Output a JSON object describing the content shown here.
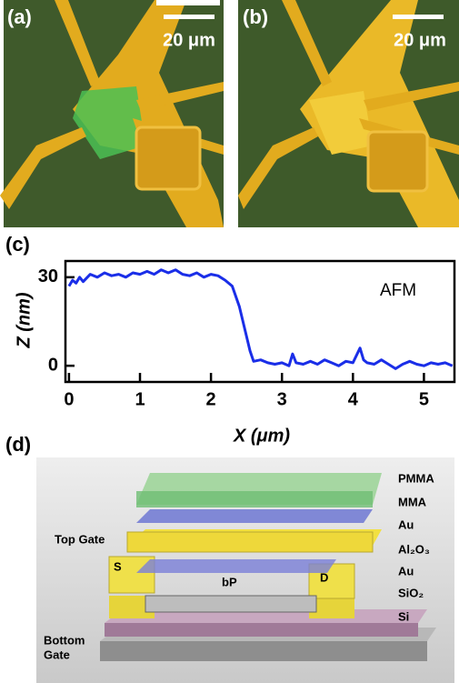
{
  "panels": {
    "a": {
      "label": "(a)",
      "scale_bar": "20 μm"
    },
    "b": {
      "label": "(b)",
      "scale_bar": "20 μm"
    },
    "d": {
      "label": "(d)",
      "layers": [
        "PMMA",
        "MMA",
        "Au",
        "Al₂O₃",
        "Au",
        "SiO₂",
        "Si"
      ],
      "top_gate": "Top Gate",
      "source": "S",
      "drain": "D",
      "channel": "bP",
      "bottom_gate": [
        "Bottom",
        "Gate"
      ]
    }
  },
  "chart_data": {
    "type": "line",
    "panel_label": "(c)",
    "xlabel": "X (μm)",
    "ylabel": "Z (nm)",
    "annotation": "AFM",
    "color": "#1a2ee8",
    "xlim": [
      -0.05,
      5.43
    ],
    "ylim": [
      -5.5,
      35.5
    ],
    "xticks": [
      0,
      1,
      2,
      3,
      4,
      5
    ],
    "yticks": [
      0,
      30
    ],
    "x": [
      0,
      0.05,
      0.1,
      0.15,
      0.2,
      0.3,
      0.4,
      0.5,
      0.6,
      0.7,
      0.8,
      0.9,
      1.0,
      1.1,
      1.2,
      1.3,
      1.4,
      1.5,
      1.6,
      1.7,
      1.8,
      1.9,
      2.0,
      2.1,
      2.2,
      2.3,
      2.4,
      2.5,
      2.55,
      2.6,
      2.7,
      2.8,
      2.9,
      3.0,
      3.1,
      3.15,
      3.2,
      3.3,
      3.4,
      3.5,
      3.6,
      3.7,
      3.8,
      3.9,
      4.0,
      4.1,
      4.15,
      4.2,
      4.3,
      4.4,
      4.5,
      4.6,
      4.7,
      4.8,
      4.9,
      5.0,
      5.1,
      5.2,
      5.3,
      5.4
    ],
    "values": [
      27,
      29,
      28,
      30,
      28.5,
      31,
      30,
      31.5,
      30.5,
      31,
      30,
      31.5,
      31,
      32,
      31,
      32.5,
      31.5,
      32.5,
      31,
      30.5,
      31.5,
      30,
      31,
      30.5,
      29,
      27,
      20,
      10,
      5,
      1.5,
      2,
      1,
      0.5,
      1,
      0,
      4,
      1,
      0.5,
      1.5,
      0.5,
      2,
      1,
      0,
      1.5,
      1,
      6,
      2,
      1,
      0.5,
      2,
      0.5,
      -1,
      0.5,
      1.5,
      0.5,
      0,
      1,
      0.5,
      1,
      0
    ]
  }
}
